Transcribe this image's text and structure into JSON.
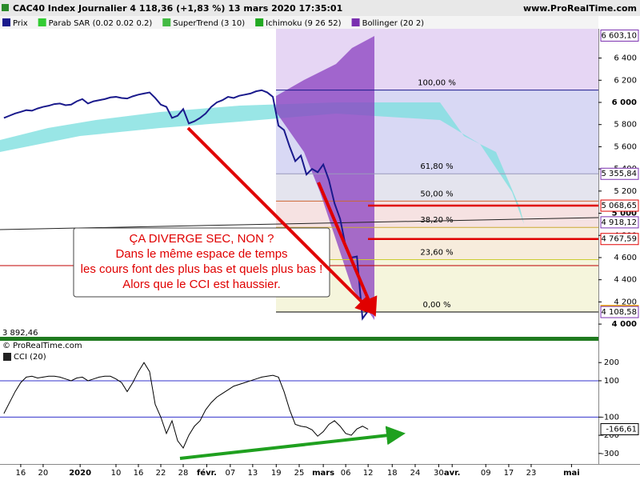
{
  "header": {
    "title": "CAC40 Index Journalier 4 118,36 (+1,83 %) 13 mars 2020 17:35:01",
    "site": "www.ProRealTime.com"
  },
  "copyright": "© ProRealTime.com",
  "annotation": [
    "ÇA DIVERGE SEC, NON ?",
    "Dans le même espace de temps",
    "les cours font des plus bas et quels plus bas !",
    "Alors que le CCI est haussier."
  ],
  "chart_data": [
    {
      "type": "line",
      "series": [
        {
          "name": "Prix",
          "color": "#1a1a8c",
          "values": [
            5860,
            5880,
            5900,
            5915,
            5930,
            5925,
            5945,
            5960,
            5970,
            5985,
            5990,
            5975,
            5980,
            6010,
            6030,
            5990,
            6010,
            6020,
            6030,
            6045,
            6050,
            6040,
            6035,
            6055,
            6070,
            6080,
            6090,
            6040,
            5980,
            5960,
            5860,
            5880,
            5940,
            5810,
            5830,
            5860,
            5900,
            5960,
            6000,
            6020,
            6050,
            6040,
            6060,
            6070,
            6080,
            6100,
            6110,
            6090,
            6050,
            5790,
            5750,
            5600,
            5470,
            5520,
            5350,
            5400,
            5370,
            5440,
            5300,
            5090,
            4950,
            4700,
            4600,
            4610,
            4050,
            4118.36
          ]
        }
      ],
      "indicators": [
        {
          "name": "Parab SAR (0.02 0.02 0.2)",
          "color": "#33cc33"
        },
        {
          "name": "SuperTrend (3 10)",
          "color": "#44bb44"
        },
        {
          "name": "Ichimoku (9 26 52)",
          "color": "#22aa22"
        },
        {
          "name": "Bollinger (20 2)",
          "color": "#7a2fb0"
        }
      ],
      "xlim": [
        -0.7,
        106.1
      ],
      "ylim": [
        3892.46,
        6664
      ],
      "ylim_label": "3 892,46",
      "yticks": [
        {
          "value": 4000,
          "label": "4 000"
        },
        {
          "value": 4200,
          "label": "4 200"
        },
        {
          "value": 4400,
          "label": "4 400"
        },
        {
          "value": 4600,
          "label": "4 600"
        },
        {
          "value": 4800,
          "label": "4 800"
        },
        {
          "value": 5000,
          "label": "5 000"
        },
        {
          "value": 5200,
          "label": "5 200"
        },
        {
          "value": 5400,
          "label": "5 400"
        },
        {
          "value": 5600,
          "label": "5 600"
        },
        {
          "value": 5800,
          "label": "5 800"
        },
        {
          "value": 6000,
          "label": "6 000"
        },
        {
          "value": 6200,
          "label": "6 200"
        },
        {
          "value": 6400,
          "label": "6 400"
        }
      ],
      "price_labels": [
        {
          "value": 6603.1,
          "label": "6 603,10",
          "color": "#7a2fb0"
        },
        {
          "value": 5355.84,
          "label": "5 355,84",
          "color": "#7a2fb0"
        },
        {
          "value": 5068.65,
          "label": "5 068,65",
          "color": "#e00000"
        },
        {
          "value": 4918.12,
          "label": "4 918,12",
          "color": "#7a2fb0"
        },
        {
          "value": 4767.59,
          "label": "4 767,59",
          "color": "#e00000"
        },
        {
          "value": 4118.36,
          "label": "4 118,36",
          "color": "#f0a000"
        },
        {
          "value": 4108.58,
          "label": "4 108,58",
          "color": "#7a2fb0"
        }
      ],
      "fibonacci": [
        {
          "value": 6111.11,
          "label": "100,00 %",
          "color": "#1a1a8c"
        },
        {
          "value": 5355.84,
          "label": "61,80 %",
          "color": "#9999bb"
        },
        {
          "value": 5109.85,
          "label": "50,00 %",
          "color": "#cc6633"
        },
        {
          "value": 4872.5,
          "label": "38,20 %",
          "color": "#ccaa33"
        },
        {
          "value": 4581.5,
          "label": "23,60 %",
          "color": "#cccc33"
        },
        {
          "value": 4108.58,
          "label": "0,00 %",
          "color": "#000000"
        }
      ]
    },
    {
      "type": "line",
      "series": [
        {
          "name": "CCI (20)",
          "color": "#000000",
          "values": [
            -80,
            -20,
            40,
            90,
            120,
            125,
            115,
            120,
            125,
            125,
            120,
            110,
            100,
            115,
            120,
            100,
            110,
            120,
            125,
            125,
            110,
            90,
            40,
            90,
            150,
            200,
            150,
            -30,
            -100,
            -190,
            -120,
            -230,
            -270,
            -200,
            -150,
            -120,
            -60,
            -20,
            10,
            30,
            50,
            70,
            80,
            90,
            100,
            110,
            120,
            125,
            130,
            120,
            40,
            -60,
            -140,
            -150,
            -155,
            -170,
            -205,
            -180,
            -140,
            -120,
            -150,
            -190,
            -200,
            -165,
            -150,
            -166.61
          ],
          "value_label": "-166,61"
        }
      ],
      "xlim": [
        -0.7,
        106.1
      ],
      "ylim": [
        -358,
        267
      ],
      "yticks": [
        200,
        100,
        -100,
        -200,
        -300
      ],
      "xticks": [
        {
          "value": 3,
          "label": "16"
        },
        {
          "value": 7,
          "label": "20"
        },
        {
          "value": 13.6,
          "label": "2020"
        },
        {
          "value": 20,
          "label": "10"
        },
        {
          "value": 24,
          "label": "16"
        },
        {
          "value": 28,
          "label": "22"
        },
        {
          "value": 32,
          "label": "28"
        },
        {
          "value": 36.2,
          "label": "févr."
        },
        {
          "value": 40.4,
          "label": "07"
        },
        {
          "value": 44.4,
          "label": "13"
        },
        {
          "value": 48.6,
          "label": "19"
        },
        {
          "value": 52.7,
          "label": "25"
        },
        {
          "value": 57,
          "label": "mars"
        },
        {
          "value": 61,
          "label": "06"
        },
        {
          "value": 65,
          "label": "12"
        },
        {
          "value": 69.3,
          "label": "18"
        },
        {
          "value": 73.4,
          "label": "24"
        },
        {
          "value": 77.6,
          "label": "30"
        },
        {
          "value": 80,
          "label": "avr."
        },
        {
          "value": 86,
          "label": "09"
        },
        {
          "value": 90.1,
          "label": "17"
        },
        {
          "value": 94.1,
          "label": "23"
        },
        {
          "value": 101.3,
          "label": "mai"
        }
      ]
    }
  ]
}
